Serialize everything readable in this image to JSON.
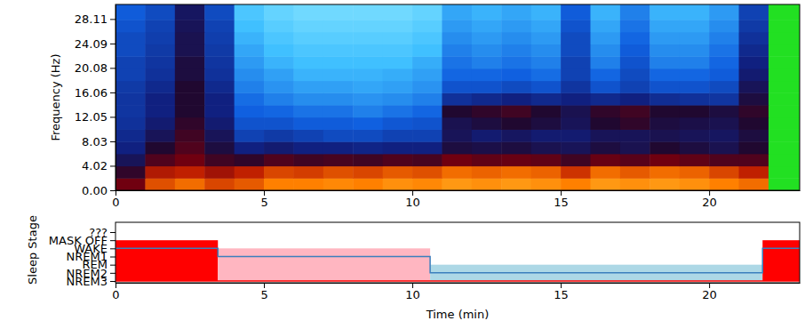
{
  "chart_data": [
    {
      "type": "heatmap",
      "ylabel": "Frequency (Hz)",
      "xlim": [
        0,
        23.05
      ],
      "xticks": [
        0,
        5,
        10,
        15,
        20
      ],
      "ylim": [
        0,
        30.5
      ],
      "yticks": [
        {
          "value": 0,
          "label": "0.00"
        },
        4.02,
        8.03,
        12.05,
        16.06,
        20.08,
        24.09,
        28.11
      ],
      "zlim": [
        0,
        1
      ],
      "x": [
        0,
        1,
        2,
        3,
        4,
        5,
        6,
        7,
        8,
        9,
        10,
        11,
        12,
        13,
        14,
        15,
        16,
        17,
        18,
        19,
        20,
        21,
        22,
        23.05
      ],
      "y": [
        0,
        2,
        4,
        6,
        8,
        10,
        12,
        14,
        16,
        18,
        20,
        22,
        24,
        26,
        28,
        30.5
      ],
      "cells": [
        [
          0.7,
          0.85,
          0.88,
          0.84,
          0.86,
          0.9,
          0.9,
          0.91,
          0.9,
          0.92,
          0.91,
          0.93,
          0.92,
          0.93,
          0.92,
          0.9,
          0.93,
          0.92,
          0.93,
          0.92,
          0.9,
          0.88,
          null
        ],
        [
          0.62,
          0.78,
          0.8,
          0.76,
          0.8,
          0.84,
          0.83,
          0.85,
          0.84,
          0.86,
          0.85,
          0.88,
          0.87,
          0.88,
          0.87,
          0.82,
          0.88,
          0.86,
          0.88,
          0.87,
          0.84,
          0.8,
          null
        ],
        [
          0.55,
          0.66,
          0.7,
          0.64,
          0.62,
          0.66,
          0.64,
          0.65,
          0.64,
          0.66,
          0.65,
          0.7,
          0.68,
          0.69,
          0.68,
          0.64,
          0.69,
          0.67,
          0.7,
          0.68,
          0.66,
          0.66,
          null
        ],
        [
          0.5,
          0.6,
          0.66,
          0.58,
          0.5,
          0.52,
          0.5,
          0.5,
          0.49,
          0.5,
          0.5,
          0.58,
          0.57,
          0.58,
          0.56,
          0.55,
          0.58,
          0.56,
          0.6,
          0.58,
          0.56,
          0.6,
          null
        ],
        [
          0.48,
          0.55,
          0.64,
          0.55,
          0.42,
          0.44,
          0.42,
          0.4,
          0.4,
          0.42,
          0.42,
          0.55,
          0.52,
          0.54,
          0.52,
          0.52,
          0.55,
          0.55,
          0.56,
          0.55,
          0.54,
          0.58,
          null
        ],
        [
          0.46,
          0.52,
          0.62,
          0.52,
          0.38,
          0.38,
          0.36,
          0.36,
          0.35,
          0.37,
          0.38,
          0.56,
          0.58,
          0.6,
          0.58,
          0.55,
          0.6,
          0.62,
          0.58,
          0.57,
          0.56,
          0.6,
          null
        ],
        [
          0.45,
          0.5,
          0.6,
          0.5,
          0.35,
          0.34,
          0.32,
          0.32,
          0.3,
          0.32,
          0.34,
          0.6,
          0.62,
          0.64,
          0.6,
          0.56,
          0.62,
          0.64,
          0.6,
          0.6,
          0.58,
          0.62,
          null
        ],
        [
          0.45,
          0.5,
          0.6,
          0.5,
          0.33,
          0.3,
          0.28,
          0.28,
          0.27,
          0.28,
          0.3,
          0.46,
          0.48,
          0.5,
          0.48,
          0.5,
          0.48,
          0.5,
          0.47,
          0.46,
          0.45,
          0.58,
          null
        ],
        [
          0.44,
          0.48,
          0.6,
          0.48,
          0.3,
          0.27,
          0.25,
          0.25,
          0.24,
          0.25,
          0.27,
          0.38,
          0.38,
          0.4,
          0.38,
          0.45,
          0.38,
          0.42,
          0.38,
          0.38,
          0.4,
          0.55,
          null
        ],
        [
          0.42,
          0.46,
          0.58,
          0.46,
          0.28,
          0.25,
          0.22,
          0.22,
          0.22,
          0.23,
          0.25,
          0.34,
          0.34,
          0.35,
          0.33,
          0.42,
          0.34,
          0.4,
          0.34,
          0.34,
          0.36,
          0.52,
          null
        ],
        [
          0.42,
          0.45,
          0.58,
          0.45,
          0.26,
          0.22,
          0.2,
          0.2,
          0.2,
          0.2,
          0.23,
          0.32,
          0.3,
          0.32,
          0.3,
          0.42,
          0.3,
          0.38,
          0.3,
          0.3,
          0.34,
          0.5,
          null
        ],
        [
          0.4,
          0.44,
          0.56,
          0.44,
          0.24,
          0.2,
          0.18,
          0.18,
          0.18,
          0.18,
          0.2,
          0.3,
          0.28,
          0.3,
          0.28,
          0.4,
          0.28,
          0.36,
          0.28,
          0.28,
          0.32,
          0.48,
          null
        ],
        [
          0.4,
          0.43,
          0.56,
          0.43,
          0.22,
          0.18,
          0.16,
          0.16,
          0.16,
          0.16,
          0.18,
          0.28,
          0.26,
          0.28,
          0.26,
          0.4,
          0.26,
          0.34,
          0.26,
          0.26,
          0.3,
          0.46,
          null
        ],
        [
          0.38,
          0.42,
          0.55,
          0.42,
          0.2,
          0.16,
          0.14,
          0.14,
          0.14,
          0.14,
          0.16,
          0.26,
          0.24,
          0.26,
          0.24,
          0.38,
          0.24,
          0.32,
          0.24,
          0.24,
          0.28,
          0.44,
          null
        ],
        [
          0.36,
          0.4,
          0.54,
          0.4,
          0.18,
          0.14,
          0.12,
          0.12,
          0.12,
          0.12,
          0.14,
          0.24,
          0.22,
          0.24,
          0.22,
          0.36,
          0.22,
          0.3,
          0.22,
          0.22,
          0.26,
          0.42,
          null
        ]
      ]
    },
    {
      "type": "step",
      "xlabel": "Time (min)",
      "ylabel": "Sleep Stage",
      "xlim": [
        0,
        23.05
      ],
      "xticks": [
        0,
        5,
        10,
        15,
        20
      ],
      "categories": [
        "NREM3",
        "NREM2",
        "REM",
        "NREM1",
        "WAKE",
        "MASK OFF",
        "???"
      ],
      "series": [
        {
          "color": "#3b7fbd",
          "x": [
            0,
            3.45,
            10.6,
            21.8
          ],
          "values": [
            "WAKE",
            "NREM1",
            "NREM2",
            "WAKE"
          ],
          "colors": [
            "#ff0000",
            "#ffb6c1",
            "#add8e6",
            "#ff0000"
          ]
        },
        {
          "color": "#ff0000",
          "x": [
            0
          ],
          "values": [
            "NREM3"
          ]
        }
      ]
    }
  ]
}
